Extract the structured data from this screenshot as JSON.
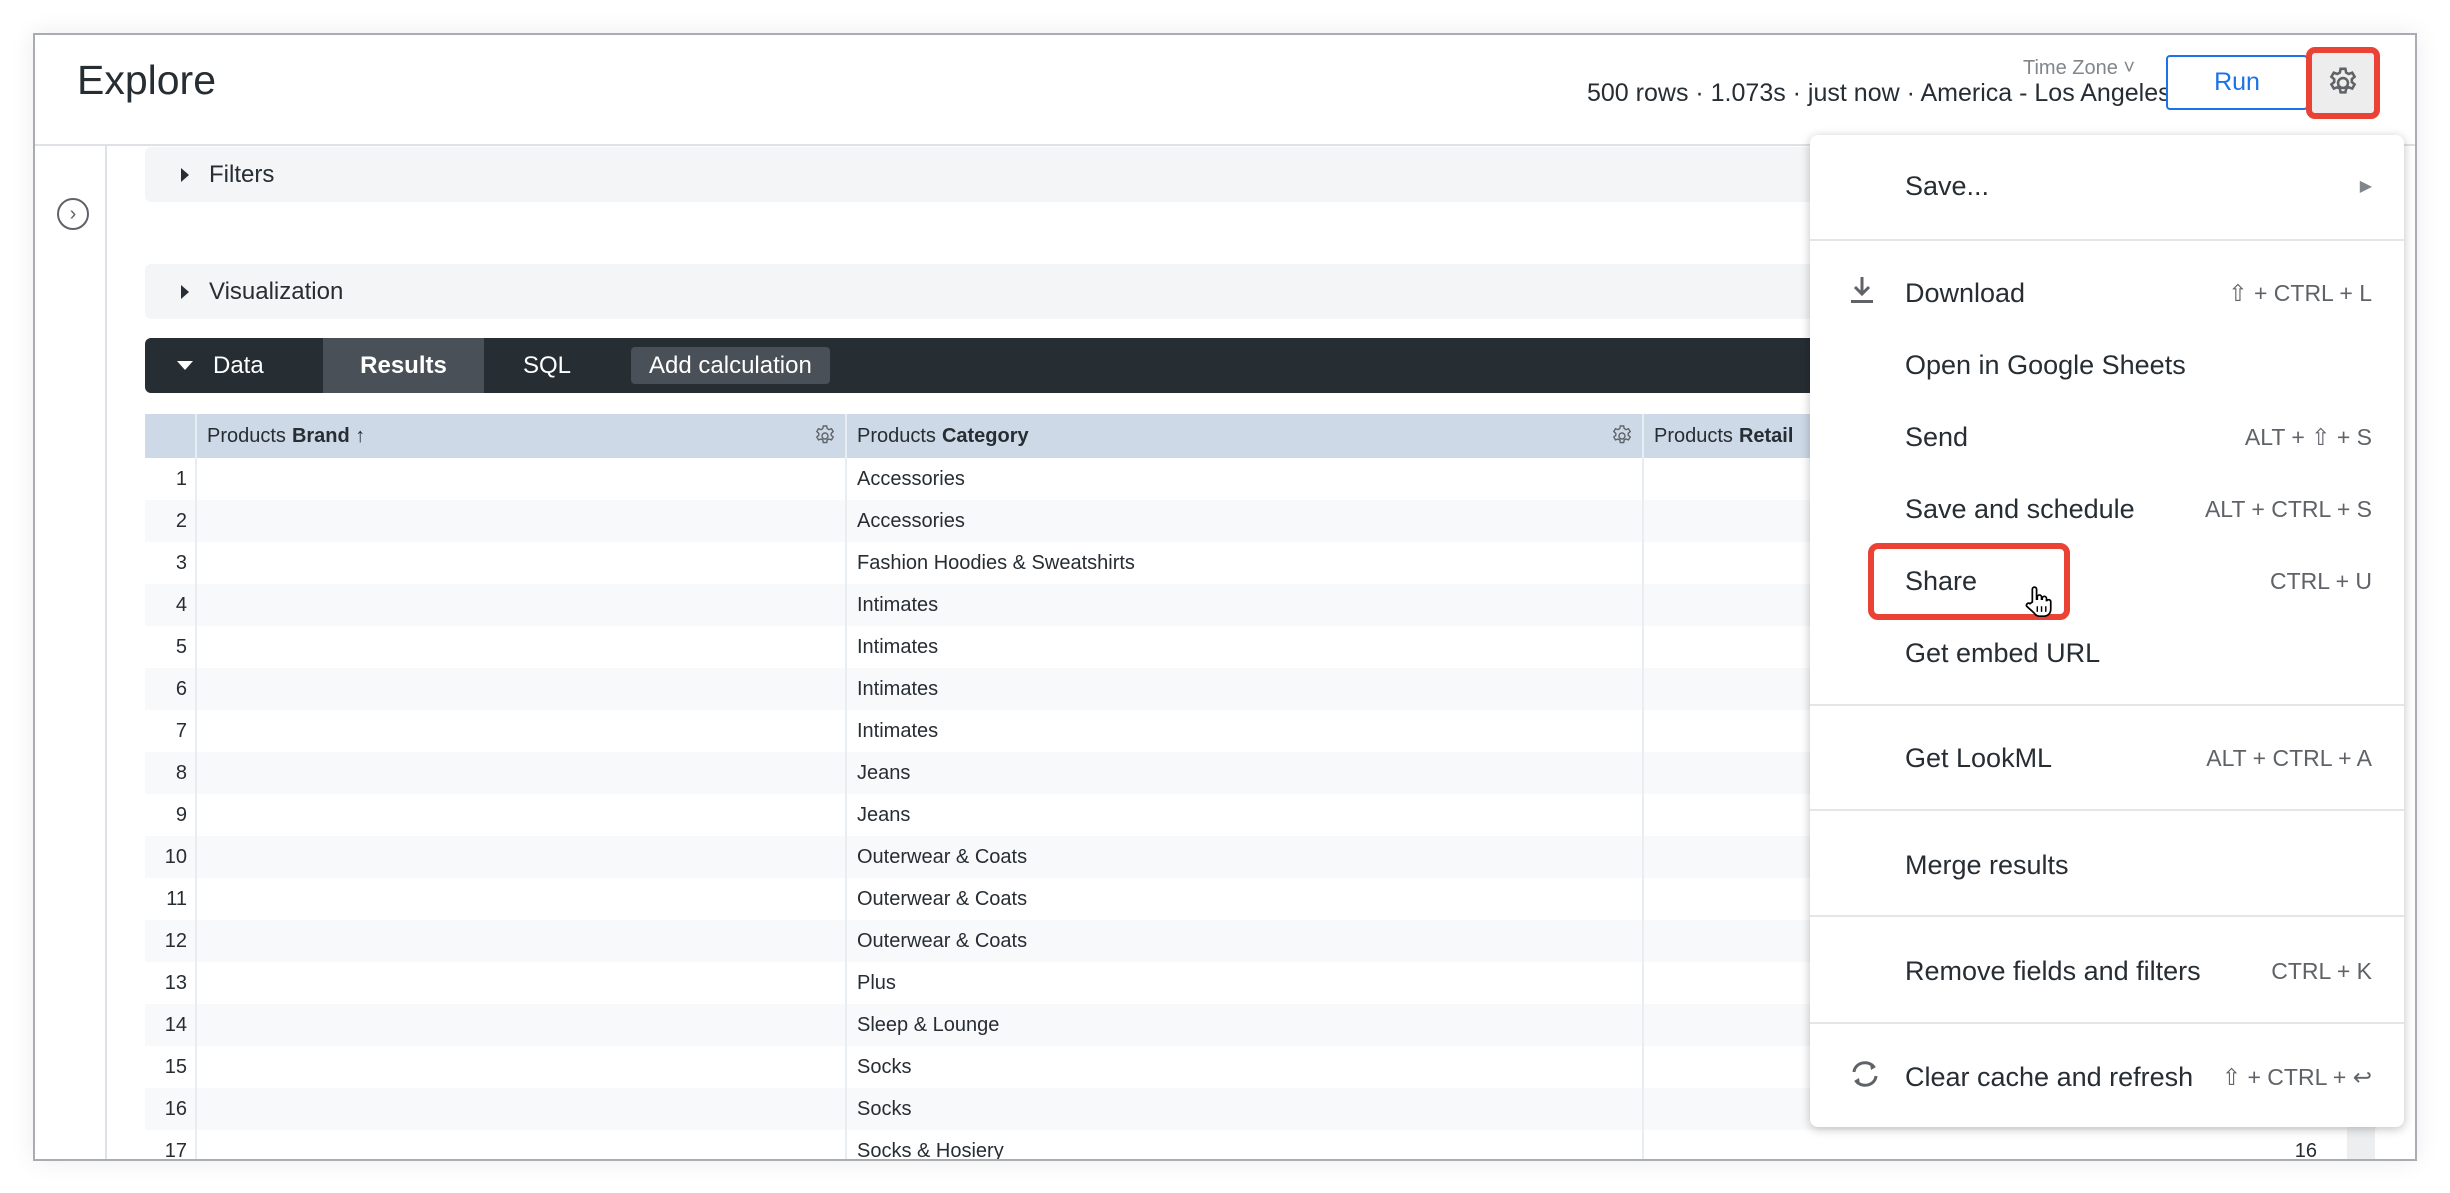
{
  "header": {
    "title": "Explore",
    "time_zone_label": "Time Zone",
    "meta": "500 rows · 1.073s · just now · America - Los Angeles",
    "run_label": "Run"
  },
  "sections": {
    "filters": "Filters",
    "visualization": "Visualization"
  },
  "databar": {
    "data": "Data",
    "results": "Results",
    "sql": "SQL",
    "add_calculation": "Add calculation"
  },
  "table": {
    "columns": [
      {
        "prefix": "Products",
        "name": "Brand ↑"
      },
      {
        "prefix": "Products",
        "name": "Category"
      },
      {
        "prefix": "Products",
        "name": "Retail"
      }
    ],
    "rows": [
      {
        "n": "1",
        "category": "Accessories",
        "retail": ""
      },
      {
        "n": "2",
        "category": "Accessories",
        "retail": ""
      },
      {
        "n": "3",
        "category": "Fashion Hoodies & Sweatshirts",
        "retail": ""
      },
      {
        "n": "4",
        "category": "Intimates",
        "retail": ""
      },
      {
        "n": "5",
        "category": "Intimates",
        "retail": ""
      },
      {
        "n": "6",
        "category": "Intimates",
        "retail": ""
      },
      {
        "n": "7",
        "category": "Intimates",
        "retail": ""
      },
      {
        "n": "8",
        "category": "Jeans",
        "retail": ""
      },
      {
        "n": "9",
        "category": "Jeans",
        "retail": ""
      },
      {
        "n": "10",
        "category": "Outerwear & Coats",
        "retail": ""
      },
      {
        "n": "11",
        "category": "Outerwear & Coats",
        "retail": ""
      },
      {
        "n": "12",
        "category": "Outerwear & Coats",
        "retail": ""
      },
      {
        "n": "13",
        "category": "Plus",
        "retail": ""
      },
      {
        "n": "14",
        "category": "Sleep & Lounge",
        "retail": ""
      },
      {
        "n": "15",
        "category": "Socks",
        "retail": ""
      },
      {
        "n": "16",
        "category": "Socks",
        "retail": ""
      },
      {
        "n": "17",
        "category": "Socks & Hosiery",
        "retail": "16"
      }
    ]
  },
  "menu": {
    "save": "Save...",
    "download": {
      "label": "Download",
      "shortcut": "⇧ + CTRL + L"
    },
    "open_sheets": "Open in Google Sheets",
    "send": {
      "label": "Send",
      "shortcut": "ALT + ⇧ + S"
    },
    "save_schedule": {
      "label": "Save and schedule",
      "shortcut": "ALT + CTRL + S"
    },
    "share": {
      "label": "Share",
      "shortcut": "CTRL + U"
    },
    "embed": "Get embed URL",
    "lookml": {
      "label": "Get LookML",
      "shortcut": "ALT + CTRL + A"
    },
    "merge": "Merge results",
    "remove": {
      "label": "Remove fields and filters",
      "shortcut": "CTRL + K"
    },
    "clear": {
      "label": "Clear cache and refresh",
      "shortcut": "⇧ + CTRL + ↩"
    }
  },
  "colors": {
    "accent": "#1a73e8",
    "highlight": "#ea4335",
    "databar": "#262d33",
    "table_header": "#cdd9e6"
  }
}
